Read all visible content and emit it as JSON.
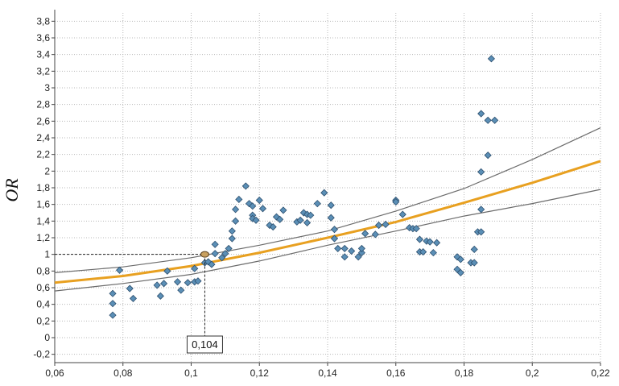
{
  "chart_data": {
    "type": "scatter",
    "ylabel": "OR",
    "xlim": [
      0.06,
      0.22
    ],
    "ylim": [
      -0.3,
      3.9
    ],
    "x_ticks": [
      {
        "value": 0.06,
        "label": "0,06"
      },
      {
        "value": 0.08,
        "label": "0,08"
      },
      {
        "value": 0.1,
        "label": "0,1"
      },
      {
        "value": 0.12,
        "label": "0,12"
      },
      {
        "value": 0.14,
        "label": "0,14"
      },
      {
        "value": 0.16,
        "label": "0,16"
      },
      {
        "value": 0.18,
        "label": "0,18"
      },
      {
        "value": 0.2,
        "label": "0,2"
      },
      {
        "value": 0.22,
        "label": "0,22"
      }
    ],
    "y_ticks": [
      {
        "value": -0.2,
        "label": "-0,2"
      },
      {
        "value": 0.0,
        "label": "0"
      },
      {
        "value": 0.2,
        "label": "0,2"
      },
      {
        "value": 0.4,
        "label": "0,4"
      },
      {
        "value": 0.6,
        "label": "0,6"
      },
      {
        "value": 0.8,
        "label": "0,8"
      },
      {
        "value": 1.0,
        "label": "1"
      },
      {
        "value": 1.2,
        "label": "1,2"
      },
      {
        "value": 1.4,
        "label": "1,4"
      },
      {
        "value": 1.6,
        "label": "1,6"
      },
      {
        "value": 1.8,
        "label": "1,8"
      },
      {
        "value": 2.0,
        "label": "2"
      },
      {
        "value": 2.2,
        "label": "2,2"
      },
      {
        "value": 2.4,
        "label": "2,4"
      },
      {
        "value": 2.6,
        "label": "2,6"
      },
      {
        "value": 2.8,
        "label": "2,8"
      },
      {
        "value": 3.0,
        "label": "3"
      },
      {
        "value": 3.2,
        "label": "3,2"
      },
      {
        "value": 3.4,
        "label": "3,4"
      },
      {
        "value": 3.6,
        "label": "3,6"
      },
      {
        "value": 3.8,
        "label": "3,8"
      }
    ],
    "grid": true,
    "points": [
      [
        0.077,
        0.27
      ],
      [
        0.077,
        0.41
      ],
      [
        0.077,
        0.53
      ],
      [
        0.079,
        0.81
      ],
      [
        0.082,
        0.59
      ],
      [
        0.083,
        0.47
      ],
      [
        0.09,
        0.63
      ],
      [
        0.091,
        0.5
      ],
      [
        0.092,
        0.65
      ],
      [
        0.093,
        0.8
      ],
      [
        0.096,
        0.67
      ],
      [
        0.097,
        0.57
      ],
      [
        0.099,
        0.66
      ],
      [
        0.101,
        0.67
      ],
      [
        0.101,
        0.83
      ],
      [
        0.102,
        0.68
      ],
      [
        0.104,
        0.9
      ],
      [
        0.105,
        0.91
      ],
      [
        0.106,
        0.88
      ],
      [
        0.107,
        1.01
      ],
      [
        0.107,
        1.12
      ],
      [
        0.109,
        0.96
      ],
      [
        0.11,
        1.01
      ],
      [
        0.111,
        1.07
      ],
      [
        0.112,
        1.19
      ],
      [
        0.112,
        1.28
      ],
      [
        0.113,
        1.4
      ],
      [
        0.113,
        1.54
      ],
      [
        0.114,
        1.66
      ],
      [
        0.116,
        1.82
      ],
      [
        0.117,
        1.61
      ],
      [
        0.118,
        1.47
      ],
      [
        0.118,
        1.43
      ],
      [
        0.118,
        1.58
      ],
      [
        0.119,
        1.41
      ],
      [
        0.12,
        1.65
      ],
      [
        0.121,
        1.55
      ],
      [
        0.123,
        1.35
      ],
      [
        0.124,
        1.33
      ],
      [
        0.125,
        1.45
      ],
      [
        0.126,
        1.42
      ],
      [
        0.127,
        1.53
      ],
      [
        0.131,
        1.39
      ],
      [
        0.132,
        1.41
      ],
      [
        0.133,
        1.5
      ],
      [
        0.134,
        1.48
      ],
      [
        0.134,
        1.38
      ],
      [
        0.135,
        1.47
      ],
      [
        0.137,
        1.61
      ],
      [
        0.139,
        1.74
      ],
      [
        0.141,
        1.59
      ],
      [
        0.141,
        1.44
      ],
      [
        0.142,
        1.3
      ],
      [
        0.142,
        1.19
      ],
      [
        0.143,
        1.07
      ],
      [
        0.145,
        0.97
      ],
      [
        0.145,
        1.07
      ],
      [
        0.147,
        1.04
      ],
      [
        0.149,
        0.97
      ],
      [
        0.15,
        1.02
      ],
      [
        0.15,
        1.07
      ],
      [
        0.151,
        1.25
      ],
      [
        0.154,
        1.24
      ],
      [
        0.155,
        1.35
      ],
      [
        0.157,
        1.36
      ],
      [
        0.16,
        1.65
      ],
      [
        0.16,
        1.63
      ],
      [
        0.162,
        1.48
      ],
      [
        0.164,
        1.32
      ],
      [
        0.165,
        1.31
      ],
      [
        0.166,
        1.31
      ],
      [
        0.167,
        1.18
      ],
      [
        0.167,
        1.03
      ],
      [
        0.168,
        1.03
      ],
      [
        0.169,
        1.16
      ],
      [
        0.17,
        1.15
      ],
      [
        0.171,
        1.02
      ],
      [
        0.172,
        1.14
      ],
      [
        0.178,
        0.97
      ],
      [
        0.178,
        0.82
      ],
      [
        0.179,
        0.78
      ],
      [
        0.179,
        0.94
      ],
      [
        0.182,
        0.9
      ],
      [
        0.183,
        0.9
      ],
      [
        0.183,
        1.06
      ],
      [
        0.184,
        1.27
      ],
      [
        0.185,
        1.27
      ],
      [
        0.185,
        1.54
      ],
      [
        0.185,
        1.99
      ],
      [
        0.185,
        2.69
      ],
      [
        0.187,
        2.19
      ],
      [
        0.187,
        2.61
      ],
      [
        0.188,
        3.35
      ],
      [
        0.189,
        2.61
      ]
    ],
    "fit": [
      [
        0.06,
        0.66
      ],
      [
        0.08,
        0.74
      ],
      [
        0.1,
        0.86
      ],
      [
        0.12,
        1.02
      ],
      [
        0.14,
        1.2
      ],
      [
        0.16,
        1.39
      ],
      [
        0.18,
        1.62
      ],
      [
        0.2,
        1.86
      ],
      [
        0.22,
        2.12
      ]
    ],
    "upper_band": [
      [
        0.06,
        0.78
      ],
      [
        0.08,
        0.85
      ],
      [
        0.1,
        0.96
      ],
      [
        0.12,
        1.11
      ],
      [
        0.14,
        1.28
      ],
      [
        0.16,
        1.52
      ],
      [
        0.18,
        1.79
      ],
      [
        0.2,
        2.14
      ],
      [
        0.22,
        2.52
      ]
    ],
    "lower_band": [
      [
        0.06,
        0.56
      ],
      [
        0.08,
        0.65
      ],
      [
        0.1,
        0.76
      ],
      [
        0.12,
        0.92
      ],
      [
        0.14,
        1.11
      ],
      [
        0.16,
        1.28
      ],
      [
        0.18,
        1.46
      ],
      [
        0.2,
        1.61
      ],
      [
        0.22,
        1.78
      ]
    ],
    "reference": {
      "x": 0.104,
      "y": 1.0
    },
    "annotation": {
      "label": "0,104",
      "x": 0.104
    }
  },
  "colors": {
    "point_fill": "#5b8fb6",
    "point_stroke": "#2d4f6e",
    "fit_line": "#e8a020",
    "band_line": "#6b6b6b",
    "grid": "#b8b8b8",
    "axis": "#444444"
  }
}
